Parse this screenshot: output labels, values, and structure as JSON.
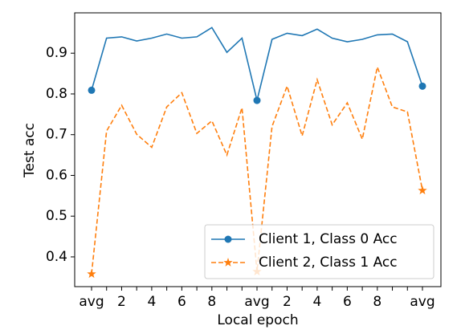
{
  "chart_data": {
    "type": "line",
    "x_label": "Local epoch",
    "y_label": "Test acc",
    "categories": [
      "avg",
      null,
      "2",
      null,
      "4",
      null,
      "6",
      null,
      "8",
      null,
      null,
      "avg",
      null,
      "2",
      null,
      "4",
      null,
      "6",
      null,
      "8",
      null,
      null,
      "avg"
    ],
    "series": [
      {
        "name": "Client 1, Class 0 Acc",
        "color": "#1f77b4",
        "linestyle": "solid",
        "marker": "circle",
        "markevery": 11,
        "values": [
          0.809,
          0.937,
          0.94,
          0.93,
          0.937,
          0.947,
          0.937,
          0.94,
          0.963,
          0.902,
          0.937,
          0.784,
          0.934,
          0.949,
          0.943,
          0.959,
          0.937,
          0.928,
          0.934,
          0.945,
          0.947,
          0.928,
          0.819
        ]
      },
      {
        "name": "Client 2, Class 1 Acc",
        "color": "#ff7f0e",
        "linestyle": "dashed",
        "marker": "star",
        "markevery": 11,
        "values": [
          0.358,
          0.709,
          0.772,
          0.701,
          0.669,
          0.768,
          0.803,
          0.703,
          0.734,
          0.65,
          0.766,
          0.364,
          0.72,
          0.819,
          0.697,
          0.835,
          0.724,
          0.778,
          0.689,
          0.866,
          0.768,
          0.756,
          0.563
        ]
      }
    ],
    "ylim": [
      0.327,
      0.999
    ],
    "yticks": [
      0.4,
      0.5,
      0.6,
      0.7,
      0.8,
      0.9
    ],
    "grid": false,
    "legend_loc": "lower right"
  }
}
